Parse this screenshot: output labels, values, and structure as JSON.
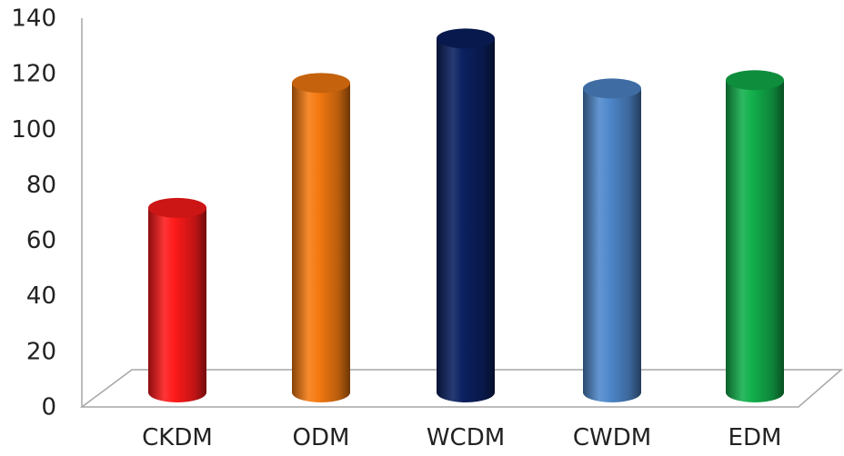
{
  "chart_data": {
    "type": "bar",
    "style": "3d-cylinder",
    "categories": [
      "CKDM",
      "ODM",
      "WCDM",
      "CWDM",
      "EDM"
    ],
    "values": [
      72,
      117,
      133,
      115,
      118
    ],
    "colors": [
      "#ff1a1a",
      "#f57a10",
      "#0a2060",
      "#4f88cc",
      "#12b04c"
    ],
    "title": "",
    "xlabel": "",
    "ylabel": "",
    "ylim": [
      0,
      140
    ],
    "yticks": [
      0,
      20,
      40,
      60,
      80,
      100,
      120,
      140
    ],
    "grid": false,
    "legend": "none"
  }
}
